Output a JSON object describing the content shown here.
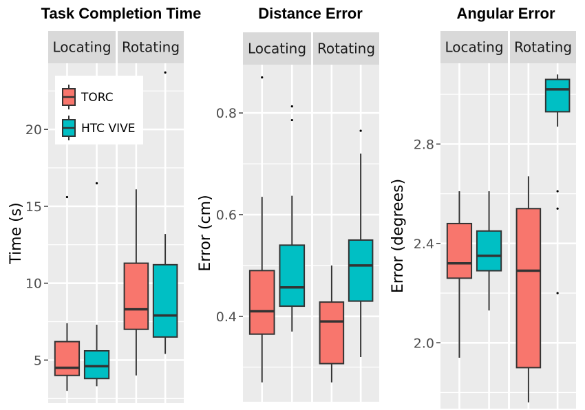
{
  "colors": {
    "panel_bg": "#ebebeb",
    "grid": "#ffffff",
    "strip_bg": "#d9d9d9",
    "whisker": "#333333",
    "torc": "#f8766d",
    "htc_vive": "#00bfc4"
  },
  "legend": {
    "position": "inside top-left of first chart",
    "entries": [
      {
        "label": "TORC",
        "color": "#f8766d"
      },
      {
        "label": "HTC VIVE",
        "color": "#00bfc4"
      }
    ]
  },
  "chart_data": [
    {
      "type": "boxplot",
      "title": "Task Completion Time",
      "ylabel": "Time (s)",
      "xlabel": "",
      "facets": [
        "Locating",
        "Rotating"
      ],
      "series_names": [
        "TORC",
        "HTC VIVE"
      ],
      "ylim": [
        2.2,
        24.3
      ],
      "yticks": [
        5,
        10,
        15,
        20
      ],
      "ytick_labels": [
        "5",
        "10",
        "15",
        "20"
      ],
      "grid": true,
      "boxes": [
        {
          "facet": "Locating",
          "series": "TORC",
          "whislo": 3.0,
          "q1": 4.0,
          "med": 4.5,
          "q3": 6.2,
          "whishi": 7.4,
          "fliers": [
            15.6
          ]
        },
        {
          "facet": "Locating",
          "series": "HTC VIVE",
          "whislo": 3.3,
          "q1": 3.8,
          "med": 4.6,
          "q3": 5.6,
          "whishi": 7.3,
          "fliers": [
            16.5
          ]
        },
        {
          "facet": "Rotating",
          "series": "TORC",
          "whislo": 4.0,
          "q1": 7.0,
          "med": 8.3,
          "q3": 11.3,
          "whishi": 16.1,
          "fliers": []
        },
        {
          "facet": "Rotating",
          "series": "HTC VIVE",
          "whislo": 5.4,
          "q1": 6.5,
          "med": 7.9,
          "q3": 11.2,
          "whishi": 13.2,
          "fliers": [
            23.7
          ]
        }
      ]
    },
    {
      "type": "boxplot",
      "title": "Distance Error",
      "ylabel": "Error (cm)",
      "xlabel": "",
      "facets": [
        "Locating",
        "Rotating"
      ],
      "series_names": [
        "TORC",
        "HTC VIVE"
      ],
      "ylim": [
        0.232,
        0.895
      ],
      "yticks": [
        0.4,
        0.6,
        0.8
      ],
      "ytick_labels": [
        "0.4",
        "0.6",
        "0.8"
      ],
      "grid": true,
      "boxes": [
        {
          "facet": "Locating",
          "series": "TORC",
          "whislo": 0.27,
          "q1": 0.365,
          "med": 0.41,
          "q3": 0.49,
          "whishi": 0.635,
          "fliers": [
            0.87
          ]
        },
        {
          "facet": "Locating",
          "series": "HTC VIVE",
          "whislo": 0.37,
          "q1": 0.42,
          "med": 0.457,
          "q3": 0.54,
          "whishi": 0.637,
          "fliers": [
            0.786,
            0.813
          ]
        },
        {
          "facet": "Rotating",
          "series": "TORC",
          "whislo": 0.27,
          "q1": 0.307,
          "med": 0.39,
          "q3": 0.428,
          "whishi": 0.5,
          "fliers": []
        },
        {
          "facet": "Rotating",
          "series": "HTC VIVE",
          "whislo": 0.32,
          "q1": 0.43,
          "med": 0.5,
          "q3": 0.55,
          "whishi": 0.72,
          "fliers": [
            0.765
          ]
        }
      ]
    },
    {
      "type": "boxplot",
      "title": "Angular Error",
      "ylabel": "Error (degrees)",
      "xlabel": "",
      "facets": [
        "Locating",
        "Rotating"
      ],
      "series_names": [
        "TORC",
        "HTC VIVE"
      ],
      "ylim": [
        1.735,
        3.125
      ],
      "yticks": [
        2.0,
        2.4,
        2.8
      ],
      "ytick_labels": [
        "2.0",
        "2.4",
        "2.8"
      ],
      "grid": true,
      "boxes": [
        {
          "facet": "Locating",
          "series": "TORC",
          "whislo": 1.94,
          "q1": 2.26,
          "med": 2.32,
          "q3": 2.48,
          "whishi": 2.61,
          "fliers": []
        },
        {
          "facet": "Locating",
          "series": "HTC VIVE",
          "whislo": 2.13,
          "q1": 2.29,
          "med": 2.35,
          "q3": 2.45,
          "whishi": 2.61,
          "fliers": []
        },
        {
          "facet": "Rotating",
          "series": "TORC",
          "whislo": 1.76,
          "q1": 1.9,
          "med": 2.29,
          "q3": 2.54,
          "whishi": 2.67,
          "fliers": []
        },
        {
          "facet": "Rotating",
          "series": "HTC VIVE",
          "whislo": 2.87,
          "q1": 2.93,
          "med": 3.02,
          "q3": 3.06,
          "whishi": 3.08,
          "fliers": [
            2.2,
            2.54,
            2.61
          ]
        }
      ]
    }
  ]
}
